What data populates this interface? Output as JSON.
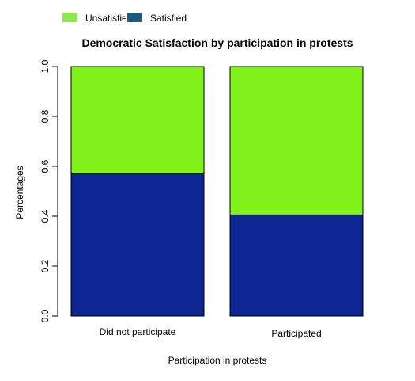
{
  "chart_data": {
    "type": "bar",
    "stacked": true,
    "title": "Democratic Satisfaction by participation in protests",
    "xlabel": "Participation in protests",
    "ylabel": "Percentages",
    "categories": [
      "Did not participate",
      "Participated"
    ],
    "series": [
      {
        "name": "Satisfied",
        "values": [
          0.57,
          0.405
        ],
        "color": "#0d2590",
        "legend_color": "#1b5a7a"
      },
      {
        "name": "Unsatisfied",
        "values": [
          0.43,
          0.595
        ],
        "color": "#80f21a",
        "legend_color": "#8de84e"
      }
    ],
    "ylim": [
      0,
      1
    ],
    "yticks": [
      "0.0",
      "0.2",
      "0.4",
      "0.6",
      "0.8",
      "1.0"
    ],
    "ytick_values": [
      0,
      0.2,
      0.4,
      0.6,
      0.8,
      1.0
    ],
    "grid": false,
    "legend_position": "top-left",
    "legend_order": [
      "Unsatisfied",
      "Satisfied"
    ]
  }
}
